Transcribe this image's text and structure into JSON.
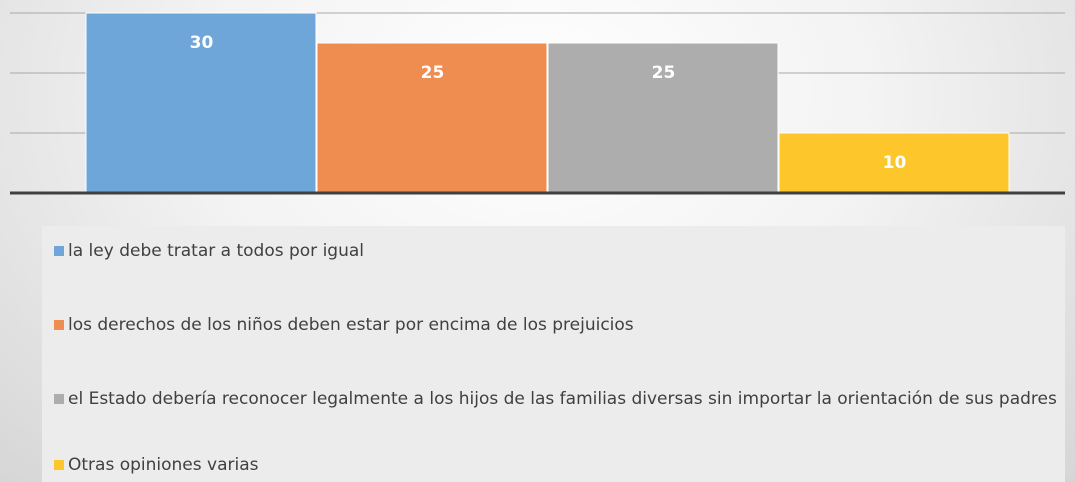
{
  "chart_data": {
    "type": "bar",
    "series": [
      {
        "name": "la ley debe tratar a todos por igual",
        "color": "#6fa6da",
        "values": [
          30
        ]
      },
      {
        "name": "los derechos de los niños deben estar por encima de los prejuicios",
        "color": "#ef8c4f",
        "values": [
          25
        ]
      },
      {
        "name": "el Estado debería reconocer legalmente a los hijos de las familias diversas sin importar la orientación de sus padres",
        "color": "#adadad",
        "values": [
          25
        ]
      },
      {
        "name": "Otras opiniones varias",
        "color": "#fdc62a",
        "values": [
          10
        ]
      }
    ],
    "ylim": [
      0,
      30
    ],
    "yticks": [
      0,
      10,
      20,
      30
    ],
    "grid": true,
    "legend": "bottom"
  }
}
